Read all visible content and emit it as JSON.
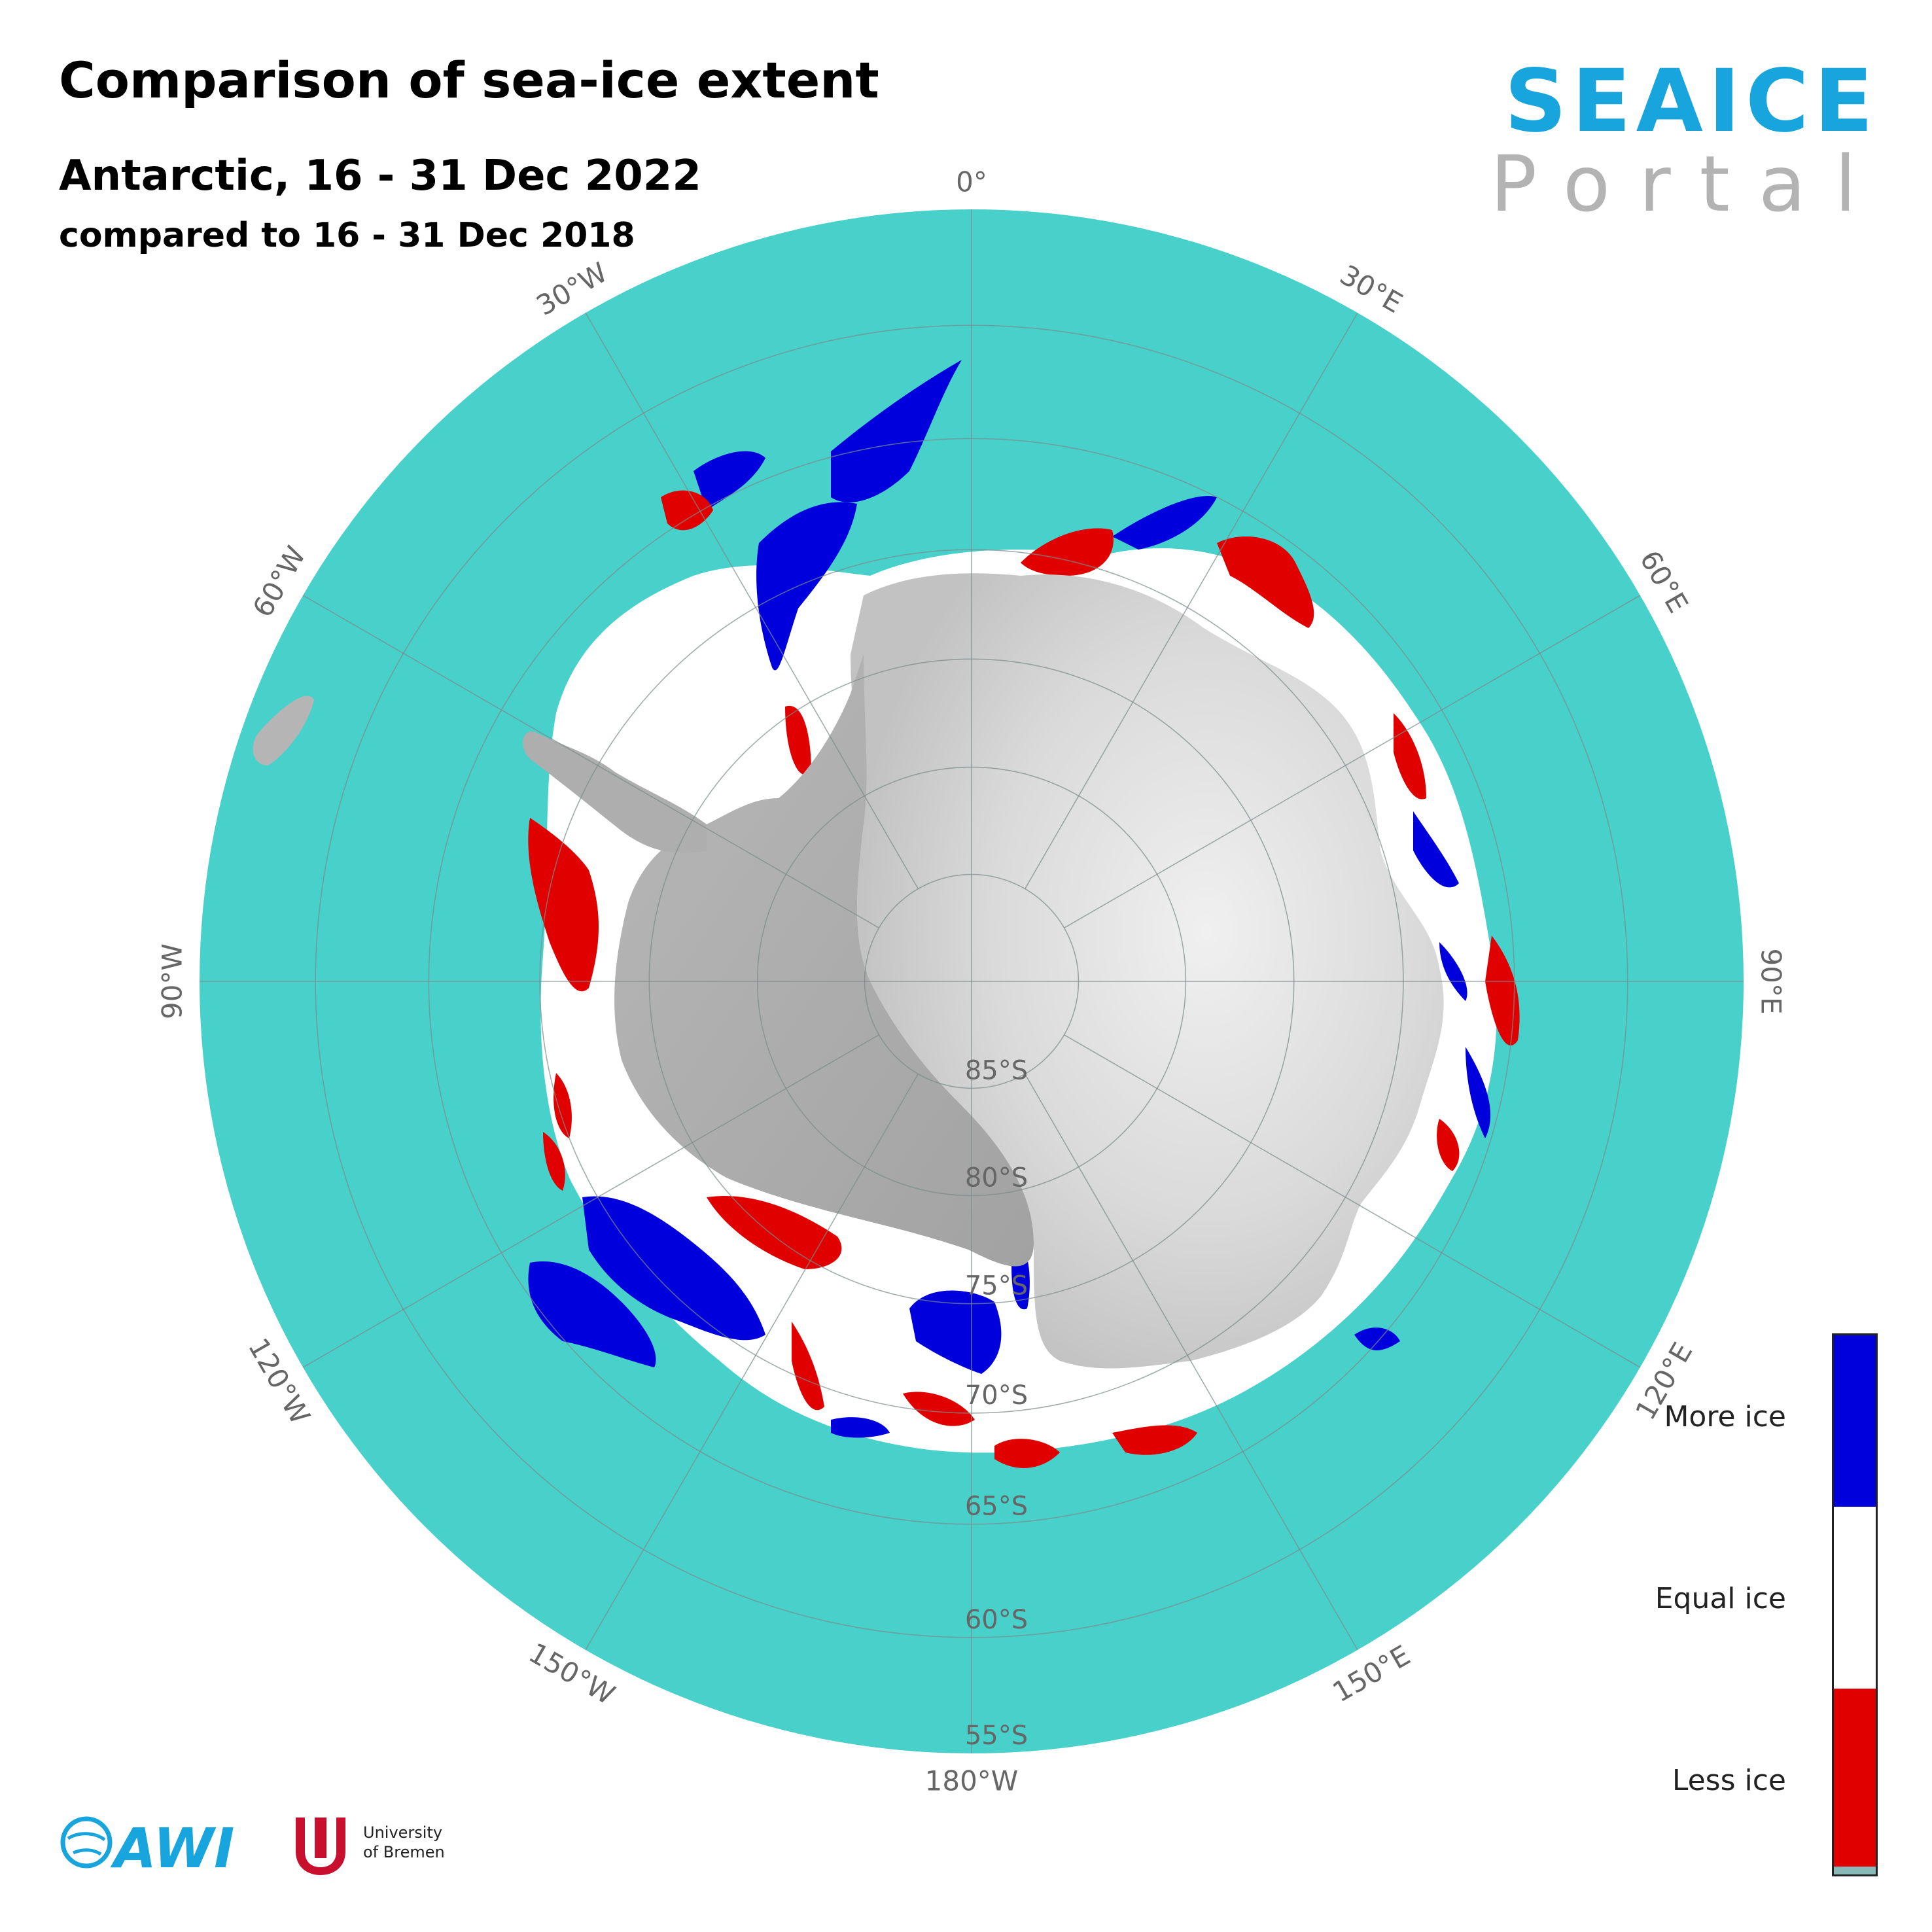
{
  "header": {
    "title": "Comparison of sea-ice extent",
    "subtitle": "Antarctic, 16 - 31 Dec 2022",
    "compared": "compared to 16 - 31 Dec 2018"
  },
  "brand": {
    "top": "SEAICE",
    "bottom": "Portal"
  },
  "map": {
    "projection": "south-polar-stereographic",
    "meridian_labels": [
      {
        "lon": 0,
        "text": "0°"
      },
      {
        "lon": 30,
        "text": "30°E"
      },
      {
        "lon": 60,
        "text": "60°E"
      },
      {
        "lon": 90,
        "text": "90°E"
      },
      {
        "lon": 120,
        "text": "120°E"
      },
      {
        "lon": 150,
        "text": "150°E"
      },
      {
        "lon": 180,
        "text": "180°W"
      },
      {
        "lon": -150,
        "text": "150°W"
      },
      {
        "lon": -120,
        "text": "120°W"
      },
      {
        "lon": -90,
        "text": "90°W"
      },
      {
        "lon": -60,
        "text": "60°W"
      },
      {
        "lon": -30,
        "text": "30°W"
      }
    ],
    "latitude_labels": [
      {
        "lat": -85,
        "text": "85°S"
      },
      {
        "lat": -80,
        "text": "80°S"
      },
      {
        "lat": -75,
        "text": "75°S"
      },
      {
        "lat": -70,
        "text": "70°S"
      },
      {
        "lat": -65,
        "text": "65°S"
      },
      {
        "lat": -60,
        "text": "60°S"
      },
      {
        "lat": -55,
        "text": "55°S"
      }
    ],
    "colors": {
      "ocean": "#48d0cb",
      "equal_ice": "#ffffff",
      "more_ice": "#0000dd",
      "less_ice": "#e00000",
      "land_light": "#e4e4e4",
      "land_dark": "#a8a8a8",
      "grid": "#7d8a8a"
    }
  },
  "legend": {
    "items": [
      {
        "label": "More ice",
        "color": "#0000dd"
      },
      {
        "label": "Equal ice",
        "color": "#ffffff"
      },
      {
        "label": "Less ice",
        "color": "#e00000"
      }
    ],
    "bottom_swatch_color": "#88b8b8"
  },
  "logos": {
    "awi": "AWI",
    "bremen_line1": "University",
    "bremen_line2": "of Bremen"
  }
}
